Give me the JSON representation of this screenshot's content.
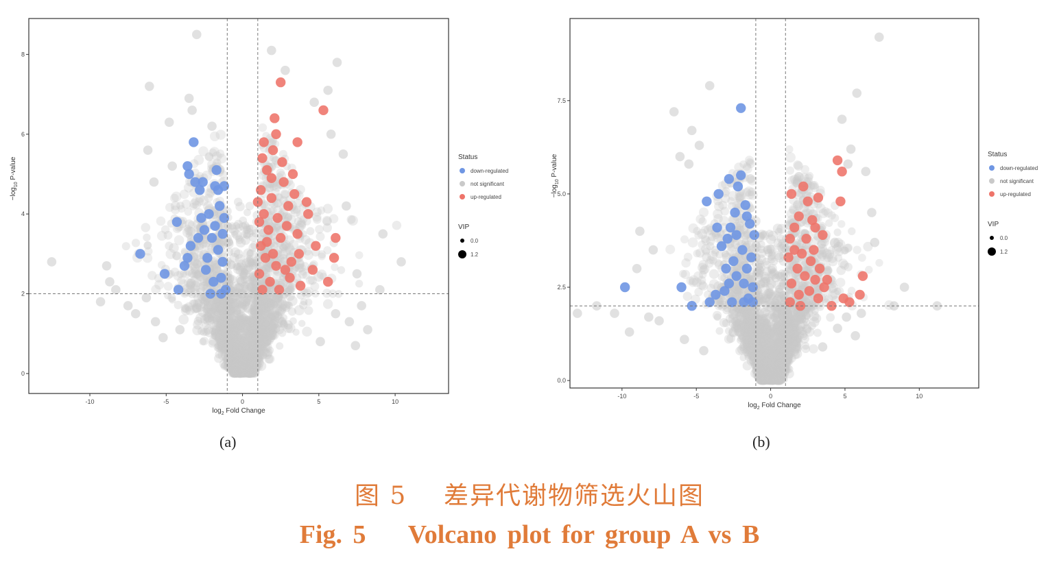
{
  "chart_data": [
    {
      "type": "scatter",
      "panel_label": "(a)",
      "xlabel_main": "log",
      "xlabel_sub": "2",
      "xlabel_rest": " Fold Change",
      "ylabel_main": "−log",
      "ylabel_sub": "10",
      "ylabel_rest": " P-value",
      "xlim": [
        -14,
        13.5
      ],
      "ylim": [
        -0.5,
        8.9
      ],
      "xticks": [
        -10,
        -5,
        0,
        5,
        10
      ],
      "xtick_labels": [
        "-10",
        "-5",
        "0",
        "5",
        "10"
      ],
      "yticks": [
        0,
        2,
        4,
        6,
        8
      ],
      "ytick_labels": [
        "0",
        "2",
        "4",
        "6",
        "8"
      ],
      "fc_threshold": [
        -1,
        1
      ],
      "p_threshold": 2,
      "legend_status_title": "Status",
      "legend_status": [
        {
          "label": "down-regulated",
          "color": "#6f96e3"
        },
        {
          "label": "not significant",
          "color": "#c9c9c9"
        },
        {
          "label": "up-regulated",
          "color": "#ee7369"
        }
      ],
      "legend_vip_title": "VIP",
      "legend_vip": [
        {
          "label": "0.0"
        },
        {
          "label": "1.2"
        }
      ],
      "down_points": [
        [
          -6.7,
          3.0
        ],
        [
          -5.1,
          2.5
        ],
        [
          -4.2,
          2.1
        ],
        [
          -4.3,
          3.8
        ],
        [
          -3.6,
          5.2
        ],
        [
          -3.5,
          5.0
        ],
        [
          -3.4,
          3.2
        ],
        [
          -3.1,
          4.8
        ],
        [
          -3.2,
          5.8
        ],
        [
          -2.8,
          4.6
        ],
        [
          -2.6,
          4.8
        ],
        [
          -2.5,
          3.6
        ],
        [
          -2.3,
          2.9
        ],
        [
          -2.2,
          4.0
        ],
        [
          -2.0,
          3.4
        ],
        [
          -1.8,
          4.7
        ],
        [
          -1.7,
          5.1
        ],
        [
          -1.6,
          3.1
        ],
        [
          -1.5,
          4.2
        ],
        [
          -1.4,
          2.4
        ],
        [
          -1.3,
          2.8
        ],
        [
          -1.2,
          3.9
        ],
        [
          -1.1,
          2.1
        ],
        [
          -1.9,
          2.3
        ],
        [
          -2.4,
          2.6
        ],
        [
          -1.6,
          4.6
        ],
        [
          -1.3,
          3.5
        ],
        [
          -2.9,
          3.4
        ],
        [
          -3.6,
          2.9
        ],
        [
          -2.1,
          2.0
        ],
        [
          -1.4,
          2.0
        ],
        [
          -2.7,
          3.9
        ],
        [
          -1.2,
          4.7
        ],
        [
          -1.8,
          3.7
        ],
        [
          -3.8,
          2.7
        ]
      ],
      "up_points": [
        [
          2.5,
          7.3
        ],
        [
          5.3,
          6.6
        ],
        [
          2.1,
          6.4
        ],
        [
          2.2,
          6.0
        ],
        [
          3.6,
          5.8
        ],
        [
          2.0,
          5.6
        ],
        [
          1.3,
          5.4
        ],
        [
          1.6,
          5.1
        ],
        [
          3.3,
          5.0
        ],
        [
          2.7,
          4.8
        ],
        [
          1.2,
          4.6
        ],
        [
          1.9,
          4.4
        ],
        [
          4.2,
          4.3
        ],
        [
          3.0,
          4.2
        ],
        [
          1.4,
          4.0
        ],
        [
          2.3,
          3.9
        ],
        [
          1.1,
          3.8
        ],
        [
          1.7,
          3.6
        ],
        [
          4.3,
          4.0
        ],
        [
          3.6,
          3.5
        ],
        [
          2.5,
          3.4
        ],
        [
          1.2,
          3.2
        ],
        [
          6.1,
          3.4
        ],
        [
          4.8,
          3.2
        ],
        [
          2.0,
          3.0
        ],
        [
          1.5,
          2.9
        ],
        [
          3.2,
          2.8
        ],
        [
          6.0,
          2.9
        ],
        [
          2.8,
          2.6
        ],
        [
          1.1,
          2.5
        ],
        [
          4.6,
          2.6
        ],
        [
          1.8,
          2.3
        ],
        [
          2.4,
          2.1
        ],
        [
          3.8,
          2.2
        ],
        [
          5.6,
          2.3
        ],
        [
          1.3,
          2.1
        ],
        [
          3.1,
          2.4
        ],
        [
          1.6,
          3.3
        ],
        [
          2.9,
          3.7
        ],
        [
          1.9,
          4.9
        ],
        [
          2.6,
          5.3
        ],
        [
          3.4,
          4.5
        ],
        [
          1.4,
          5.8
        ],
        [
          2.2,
          2.7
        ],
        [
          3.7,
          3.0
        ],
        [
          1.0,
          4.3
        ]
      ],
      "grey_big": [
        [
          -6.1,
          7.2
        ],
        [
          -3.0,
          8.5
        ],
        [
          -3.5,
          6.9
        ],
        [
          -3.3,
          6.6
        ],
        [
          -4.8,
          6.3
        ],
        [
          -2.0,
          6.2
        ],
        [
          -6.2,
          5.6
        ],
        [
          -4.6,
          5.2
        ],
        [
          -5.8,
          4.8
        ],
        [
          -12.5,
          2.8
        ],
        [
          -8.9,
          2.7
        ],
        [
          -8.7,
          2.3
        ],
        [
          -8.3,
          2.1
        ],
        [
          -9.3,
          1.8
        ],
        [
          -7.5,
          1.7
        ],
        [
          -6.3,
          1.9
        ],
        [
          -7.0,
          1.5
        ],
        [
          -5.7,
          1.3
        ],
        [
          -5.2,
          0.9
        ],
        [
          -4.1,
          1.1
        ],
        [
          1.9,
          8.1
        ],
        [
          2.8,
          7.6
        ],
        [
          6.2,
          7.8
        ],
        [
          5.6,
          7.1
        ],
        [
          4.7,
          6.8
        ],
        [
          5.8,
          6.0
        ],
        [
          6.6,
          5.5
        ],
        [
          6.8,
          4.2
        ],
        [
          9.2,
          3.5
        ],
        [
          10.4,
          2.8
        ],
        [
          9.0,
          2.1
        ],
        [
          7.5,
          2.5
        ],
        [
          7.8,
          1.7
        ],
        [
          8.2,
          1.1
        ],
        [
          7.0,
          1.3
        ],
        [
          7.4,
          0.7
        ],
        [
          6.1,
          1.5
        ],
        [
          5.1,
          0.8
        ]
      ]
    },
    {
      "type": "scatter",
      "panel_label": "(b)",
      "xlabel_main": "log",
      "xlabel_sub": "2",
      "xlabel_rest": " Fold Change",
      "ylabel_main": "−log",
      "ylabel_sub": "10",
      "ylabel_rest": " P-value",
      "xlim": [
        -13.5,
        14
      ],
      "ylim": [
        -0.2,
        9.7
      ],
      "xticks": [
        -10,
        -5,
        0,
        5,
        10
      ],
      "xtick_labels": [
        "-10",
        "-5",
        "0",
        "5",
        "10"
      ],
      "yticks": [
        0,
        2.5,
        5,
        7.5
      ],
      "ytick_labels": [
        "0.0",
        "2.5",
        "5.0",
        "7.5"
      ],
      "fc_threshold": [
        -1,
        1
      ],
      "p_threshold": 2,
      "legend_status_title": "Status",
      "legend_status": [
        {
          "label": "down-regulated",
          "color": "#6f96e3"
        },
        {
          "label": "not significant",
          "color": "#c9c9c9"
        },
        {
          "label": "up-regulated",
          "color": "#ee7369"
        }
      ],
      "legend_vip_title": "VIP",
      "legend_vip": [
        {
          "label": "0.0"
        },
        {
          "label": "1.2"
        }
      ],
      "down_points": [
        [
          -9.8,
          2.5
        ],
        [
          -6.0,
          2.5
        ],
        [
          -5.3,
          2.0
        ],
        [
          -4.3,
          4.8
        ],
        [
          -4.1,
          2.1
        ],
        [
          -3.7,
          2.3
        ],
        [
          -3.5,
          5.0
        ],
        [
          -3.3,
          3.6
        ],
        [
          -3.1,
          2.4
        ],
        [
          -2.9,
          3.8
        ],
        [
          -2.8,
          5.4
        ],
        [
          -2.7,
          4.1
        ],
        [
          -2.6,
          2.1
        ],
        [
          -2.5,
          3.2
        ],
        [
          -2.4,
          4.5
        ],
        [
          -2.3,
          2.8
        ],
        [
          -2.2,
          5.2
        ],
        [
          -2.0,
          5.5
        ],
        [
          -1.9,
          3.5
        ],
        [
          -1.8,
          2.6
        ],
        [
          -1.7,
          4.7
        ],
        [
          -1.6,
          3.0
        ],
        [
          -1.5,
          2.2
        ],
        [
          -1.4,
          4.2
        ],
        [
          -1.3,
          3.3
        ],
        [
          -1.2,
          2.5
        ],
        [
          -1.1,
          3.9
        ],
        [
          -2.0,
          7.3
        ],
        [
          -3.0,
          3.0
        ],
        [
          -1.8,
          2.1
        ],
        [
          -2.3,
          3.9
        ],
        [
          -3.6,
          4.1
        ],
        [
          -1.6,
          4.4
        ],
        [
          -2.8,
          2.6
        ],
        [
          -1.2,
          2.1
        ]
      ],
      "up_points": [
        [
          4.5,
          5.9
        ],
        [
          4.8,
          5.6
        ],
        [
          1.4,
          5.0
        ],
        [
          2.2,
          5.2
        ],
        [
          2.5,
          4.8
        ],
        [
          3.2,
          4.9
        ],
        [
          4.7,
          4.8
        ],
        [
          1.9,
          4.4
        ],
        [
          2.8,
          4.3
        ],
        [
          3.0,
          4.1
        ],
        [
          1.3,
          3.8
        ],
        [
          2.4,
          3.8
        ],
        [
          3.5,
          3.9
        ],
        [
          1.6,
          3.5
        ],
        [
          2.1,
          3.4
        ],
        [
          1.2,
          3.3
        ],
        [
          2.7,
          3.2
        ],
        [
          3.3,
          3.0
        ],
        [
          1.8,
          3.0
        ],
        [
          2.3,
          2.8
        ],
        [
          3.0,
          2.7
        ],
        [
          3.8,
          2.7
        ],
        [
          1.4,
          2.6
        ],
        [
          2.6,
          2.4
        ],
        [
          3.6,
          2.5
        ],
        [
          1.9,
          2.3
        ],
        [
          1.3,
          2.1
        ],
        [
          3.2,
          2.2
        ],
        [
          4.9,
          2.2
        ],
        [
          5.3,
          2.1
        ],
        [
          6.0,
          2.3
        ],
        [
          6.2,
          2.8
        ],
        [
          1.6,
          4.1
        ],
        [
          2.9,
          3.5
        ],
        [
          4.1,
          2.0
        ],
        [
          2.0,
          2.0
        ]
      ],
      "grey_big": [
        [
          7.3,
          9.2
        ],
        [
          5.8,
          7.7
        ],
        [
          -4.1,
          7.9
        ],
        [
          -6.5,
          7.2
        ],
        [
          -5.3,
          6.7
        ],
        [
          -4.8,
          6.3
        ],
        [
          -5.5,
          5.8
        ],
        [
          -6.1,
          6.0
        ],
        [
          -8.8,
          4.0
        ],
        [
          -9.0,
          3.0
        ],
        [
          -7.9,
          3.5
        ],
        [
          -10.5,
          1.8
        ],
        [
          -11.7,
          2.0
        ],
        [
          -13.0,
          1.8
        ],
        [
          -8.2,
          1.7
        ],
        [
          -9.5,
          1.3
        ],
        [
          -7.5,
          1.6
        ],
        [
          4.8,
          7.0
        ],
        [
          5.4,
          6.2
        ],
        [
          5.2,
          5.8
        ],
        [
          6.4,
          5.6
        ],
        [
          6.8,
          4.5
        ],
        [
          7.0,
          3.7
        ],
        [
          9.0,
          2.5
        ],
        [
          8.3,
          2.0
        ],
        [
          11.2,
          2.0
        ],
        [
          6.1,
          1.8
        ],
        [
          5.1,
          1.7
        ],
        [
          5.7,
          1.2
        ],
        [
          4.5,
          1.4
        ],
        [
          3.5,
          0.9
        ],
        [
          -4.5,
          0.8
        ],
        [
          -5.8,
          1.1
        ]
      ]
    }
  ],
  "caption_zh": "图 5    差异代谢物筛选火山图",
  "caption_en": "Fig. 5    Volcano plot for group A vs B"
}
